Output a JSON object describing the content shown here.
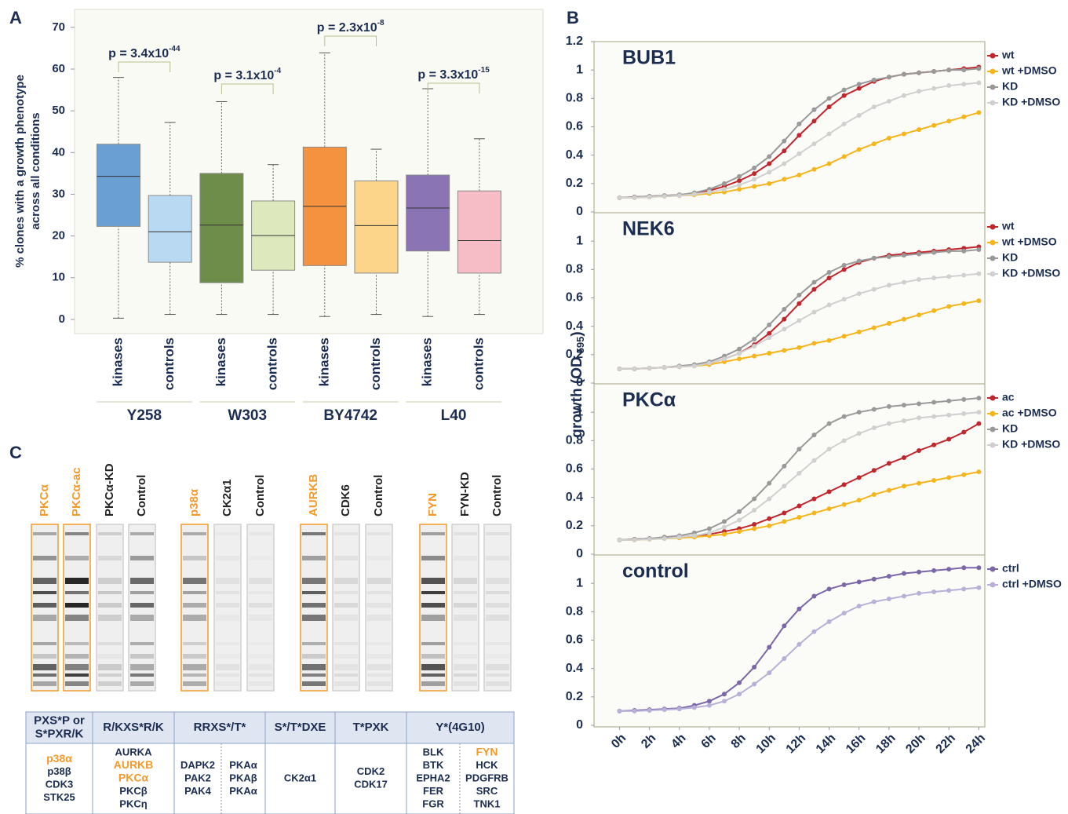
{
  "panel_labels": [
    "A",
    "B",
    "C"
  ],
  "chart_data": [
    {
      "type": "box",
      "y_label": [
        "% clones with a growth phenotype",
        "across all conditions"
      ],
      "categories": [
        "kinases",
        "controls",
        "kinases",
        "controls",
        "kinases",
        "controls",
        "kinases",
        "controls"
      ],
      "groups": [
        {
          "name": "Y258",
          "p_value": "p = 3.4x10",
          "p_exponent": "-44"
        },
        {
          "name": "W303",
          "p_value": "p = 3.1x10",
          "p_exponent": "-4"
        },
        {
          "name": "BY4742",
          "p_value": "p = 2.3x10",
          "p_exponent": "-8"
        },
        {
          "name": "L40",
          "p_value": "p = 3.3x10",
          "p_exponent": "-15"
        }
      ],
      "boxes": [
        {
          "min": 0.3,
          "q1": 22.3,
          "median": 34.3,
          "q3": 42,
          "max": 58,
          "color": "#6a9fd4"
        },
        {
          "min": 1.2,
          "q1": 13.7,
          "median": 21,
          "q3": 29.7,
          "max": 47.2,
          "color": "#b9d8f2"
        },
        {
          "min": 1.2,
          "q1": 8.8,
          "median": 22.6,
          "q3": 35,
          "max": 52.2,
          "color": "#6e8c4a"
        },
        {
          "min": 1.2,
          "q1": 11.8,
          "median": 20.1,
          "q3": 28.4,
          "max": 37.1,
          "color": "#dde9bd"
        },
        {
          "min": 0.7,
          "q1": 12.9,
          "median": 27.1,
          "q3": 41.3,
          "max": 63.9,
          "color": "#f5923f"
        },
        {
          "min": 1.2,
          "q1": 11.1,
          "median": 22.5,
          "q3": 33.2,
          "max": 40.8,
          "color": "#fcd58a"
        },
        {
          "min": 0.7,
          "q1": 16.4,
          "median": 26.7,
          "q3": 34.6,
          "max": 55.3,
          "color": "#8b74b4"
        },
        {
          "min": 1.2,
          "q1": 11.1,
          "median": 18.9,
          "q3": 30.8,
          "max": 43.3,
          "color": "#f7bdc6"
        }
      ],
      "ylim": [
        -3.4,
        74.3
      ],
      "yticks": [
        0,
        10,
        20,
        30,
        40,
        50,
        60,
        70
      ]
    },
    {
      "type": "line",
      "title": "BUB1",
      "x": [
        0,
        1,
        2,
        3,
        4,
        5,
        6,
        7,
        8,
        9,
        10,
        11,
        12,
        13,
        14,
        15,
        16,
        17,
        18,
        19,
        20,
        21,
        22,
        23,
        24
      ],
      "xlim": [
        -1.7,
        24.4
      ],
      "ylim": [
        0,
        1.2
      ],
      "yticks": [
        0,
        0.2,
        0.4,
        0.6,
        0.8,
        1,
        1.2
      ],
      "series": [
        {
          "name": "wt",
          "color": "#c0272d",
          "values": [
            0.1,
            0.105,
            0.11,
            0.115,
            0.12,
            0.13,
            0.15,
            0.18,
            0.22,
            0.27,
            0.34,
            0.43,
            0.54,
            0.64,
            0.74,
            0.82,
            0.87,
            0.92,
            0.95,
            0.97,
            0.98,
            0.99,
            1.0,
            1.01,
            1.02
          ]
        },
        {
          "name": "wt +DMSO",
          "color": "#f5b51b",
          "values": [
            0.1,
            0.1,
            0.105,
            0.11,
            0.115,
            0.12,
            0.13,
            0.14,
            0.16,
            0.18,
            0.2,
            0.23,
            0.26,
            0.3,
            0.34,
            0.39,
            0.44,
            0.48,
            0.52,
            0.55,
            0.58,
            0.61,
            0.64,
            0.67,
            0.7
          ]
        },
        {
          "name": "KD",
          "color": "#999999",
          "values": [
            0.1,
            0.105,
            0.11,
            0.115,
            0.12,
            0.135,
            0.16,
            0.2,
            0.25,
            0.31,
            0.39,
            0.5,
            0.62,
            0.72,
            0.8,
            0.86,
            0.9,
            0.93,
            0.95,
            0.97,
            0.98,
            0.99,
            1.0,
            1.0,
            1.01
          ]
        },
        {
          "name": "KD +DMSO",
          "color": "#d0d0d0",
          "values": [
            0.1,
            0.1,
            0.105,
            0.11,
            0.115,
            0.125,
            0.14,
            0.16,
            0.19,
            0.23,
            0.28,
            0.34,
            0.41,
            0.48,
            0.55,
            0.62,
            0.68,
            0.74,
            0.78,
            0.82,
            0.85,
            0.87,
            0.89,
            0.9,
            0.91
          ]
        }
      ]
    },
    {
      "type": "line",
      "title": "NEK6",
      "x": [
        0,
        1,
        2,
        3,
        4,
        5,
        6,
        7,
        8,
        9,
        10,
        11,
        12,
        13,
        14,
        15,
        16,
        17,
        18,
        19,
        20,
        21,
        22,
        23,
        24
      ],
      "xlim": [
        -1.7,
        24.4
      ],
      "ylim": [
        0,
        1.2
      ],
      "yticks": [
        0,
        0.2,
        0.4,
        0.6,
        0.8,
        1
      ],
      "series": [
        {
          "name": "wt",
          "color": "#c0272d",
          "values": [
            0.1,
            0.1,
            0.105,
            0.11,
            0.115,
            0.125,
            0.14,
            0.17,
            0.21,
            0.27,
            0.35,
            0.45,
            0.56,
            0.66,
            0.74,
            0.8,
            0.85,
            0.88,
            0.9,
            0.91,
            0.92,
            0.93,
            0.94,
            0.95,
            0.96
          ]
        },
        {
          "name": "wt +DMSO",
          "color": "#f5b51b",
          "values": [
            0.1,
            0.1,
            0.105,
            0.11,
            0.115,
            0.12,
            0.13,
            0.15,
            0.17,
            0.19,
            0.21,
            0.23,
            0.25,
            0.28,
            0.3,
            0.33,
            0.36,
            0.39,
            0.42,
            0.45,
            0.48,
            0.51,
            0.54,
            0.56,
            0.58
          ]
        },
        {
          "name": "KD",
          "color": "#999999",
          "values": [
            0.1,
            0.1,
            0.105,
            0.11,
            0.12,
            0.13,
            0.15,
            0.19,
            0.24,
            0.31,
            0.41,
            0.52,
            0.62,
            0.71,
            0.78,
            0.83,
            0.86,
            0.88,
            0.89,
            0.9,
            0.91,
            0.92,
            0.93,
            0.93,
            0.94
          ]
        },
        {
          "name": "KD +DMSO",
          "color": "#d0d0d0",
          "values": [
            0.1,
            0.1,
            0.105,
            0.11,
            0.115,
            0.12,
            0.14,
            0.17,
            0.21,
            0.26,
            0.32,
            0.38,
            0.44,
            0.5,
            0.55,
            0.59,
            0.63,
            0.66,
            0.69,
            0.71,
            0.73,
            0.74,
            0.75,
            0.76,
            0.77
          ]
        }
      ]
    },
    {
      "type": "line",
      "title": "PKCα",
      "x": [
        0,
        1,
        2,
        3,
        4,
        5,
        6,
        7,
        8,
        9,
        10,
        11,
        12,
        13,
        14,
        15,
        16,
        17,
        18,
        19,
        20,
        21,
        22,
        23,
        24
      ],
      "xlim": [
        -1.7,
        24.4
      ],
      "ylim": [
        0,
        1.2
      ],
      "yticks": [
        0,
        0.2,
        0.4,
        0.6,
        0.8,
        1
      ],
      "series": [
        {
          "name": "ac",
          "color": "#c0272d",
          "values": [
            0.1,
            0.105,
            0.11,
            0.115,
            0.12,
            0.13,
            0.14,
            0.16,
            0.18,
            0.21,
            0.25,
            0.29,
            0.34,
            0.39,
            0.44,
            0.49,
            0.54,
            0.59,
            0.64,
            0.68,
            0.73,
            0.77,
            0.81,
            0.86,
            0.92
          ]
        },
        {
          "name": "ac +DMSO",
          "color": "#f5b51b",
          "values": [
            0.1,
            0.1,
            0.105,
            0.11,
            0.115,
            0.12,
            0.13,
            0.14,
            0.16,
            0.18,
            0.2,
            0.23,
            0.26,
            0.29,
            0.32,
            0.35,
            0.38,
            0.42,
            0.45,
            0.48,
            0.5,
            0.52,
            0.54,
            0.56,
            0.58
          ]
        },
        {
          "name": "KD",
          "color": "#999999",
          "values": [
            0.1,
            0.105,
            0.11,
            0.12,
            0.13,
            0.15,
            0.18,
            0.23,
            0.3,
            0.39,
            0.5,
            0.62,
            0.74,
            0.84,
            0.92,
            0.97,
            1.0,
            1.02,
            1.04,
            1.05,
            1.06,
            1.07,
            1.08,
            1.09,
            1.1
          ]
        },
        {
          "name": "KD +DMSO",
          "color": "#d0d0d0",
          "values": [
            0.1,
            0.1,
            0.105,
            0.11,
            0.12,
            0.13,
            0.15,
            0.19,
            0.24,
            0.31,
            0.39,
            0.48,
            0.57,
            0.66,
            0.74,
            0.8,
            0.85,
            0.89,
            0.92,
            0.94,
            0.96,
            0.97,
            0.98,
            0.99,
            1.0
          ]
        }
      ]
    },
    {
      "type": "line",
      "title": "control",
      "x": [
        0,
        1,
        2,
        3,
        4,
        5,
        6,
        7,
        8,
        9,
        10,
        11,
        12,
        13,
        14,
        15,
        16,
        17,
        18,
        19,
        20,
        21,
        22,
        23,
        24
      ],
      "xlim": [
        -1.7,
        24.4
      ],
      "ylim": [
        0,
        1.2
      ],
      "yticks": [
        0,
        0.2,
        0.4,
        0.6,
        0.8,
        1
      ],
      "xticks": [
        {
          "value": 0,
          "label": "0h"
        },
        {
          "value": 2,
          "label": "2h"
        },
        {
          "value": 4,
          "label": "4h"
        },
        {
          "value": 6,
          "label": "6h"
        },
        {
          "value": 8,
          "label": "8h"
        },
        {
          "value": 10,
          "label": "10h"
        },
        {
          "value": 12,
          "label": "12h"
        },
        {
          "value": 14,
          "label": "14h"
        },
        {
          "value": 16,
          "label": "16h"
        },
        {
          "value": 18,
          "label": "18h"
        },
        {
          "value": 20,
          "label": "20h"
        },
        {
          "value": 22,
          "label": "22h"
        },
        {
          "value": 24,
          "label": "24h"
        }
      ],
      "series": [
        {
          "name": "ctrl",
          "color": "#7b67a8",
          "values": [
            0.1,
            0.105,
            0.11,
            0.115,
            0.12,
            0.14,
            0.17,
            0.22,
            0.3,
            0.41,
            0.55,
            0.7,
            0.82,
            0.91,
            0.96,
            0.99,
            1.01,
            1.03,
            1.05,
            1.07,
            1.08,
            1.09,
            1.1,
            1.11,
            1.11
          ]
        },
        {
          "name": "ctrl +DMSO",
          "color": "#b8b0d6",
          "values": [
            0.1,
            0.1,
            0.105,
            0.11,
            0.115,
            0.125,
            0.14,
            0.17,
            0.22,
            0.29,
            0.37,
            0.47,
            0.57,
            0.66,
            0.73,
            0.79,
            0.84,
            0.87,
            0.89,
            0.91,
            0.93,
            0.94,
            0.95,
            0.96,
            0.97
          ]
        }
      ]
    }
  ],
  "growth_axis_label": {
    "main": "growth (OD",
    "subscript": "595",
    "close": ")"
  },
  "blot_lanes": [
    {
      "label": "PKCα",
      "color": "#f39a2b"
    },
    {
      "label": "PKCα-ac",
      "color": "#f39a2b"
    },
    {
      "label": "PKCα-KD",
      "color": "#222222"
    },
    {
      "label": "Control",
      "color": "#222222"
    },
    {
      "label": "p38α",
      "color": "#f39a2b"
    },
    {
      "label": "CK2α1",
      "color": "#222222"
    },
    {
      "label": "Control",
      "color": "#222222"
    },
    {
      "label": "AURKB",
      "color": "#f39a2b"
    },
    {
      "label": "CDK6",
      "color": "#222222"
    },
    {
      "label": "Control",
      "color": "#222222"
    },
    {
      "label": "FYN",
      "color": "#f39a2b"
    },
    {
      "label": "FYN-KD",
      "color": "#222222"
    },
    {
      "label": "Control",
      "color": "#222222"
    }
  ],
  "table": {
    "highlight_color": "#f39a2b",
    "headers": [
      [
        "PXS*P or",
        "S*PXR/K"
      ],
      [
        "R/KXS*R/K"
      ],
      [
        "RRXS*/T*"
      ],
      [
        "S*/T*DXE"
      ],
      [
        "T*PXK"
      ],
      [
        "Y*(4G10)"
      ]
    ],
    "cells": [
      [
        [
          {
            "text": "p38α",
            "highlight": true
          },
          "p38β",
          "CDK3",
          "STK25"
        ]
      ],
      [
        [
          "AURKA",
          {
            "text": "AURKB",
            "highlight": true
          },
          {
            "text": "PKCα",
            "highlight": true
          },
          "PKCβ",
          "PKCη"
        ]
      ],
      [
        [
          "DAPK2",
          "PAK2",
          "PAK4"
        ],
        [
          "PKAα",
          "PKAβ",
          "PKAα"
        ]
      ],
      [
        [
          "CK2α1"
        ]
      ],
      [
        [
          "CDK2",
          "CDK17"
        ]
      ],
      [
        [
          "BLK",
          "BTK",
          "EPHA2",
          "FER",
          "FGR"
        ],
        [
          {
            "text": "FYN",
            "highlight": true
          },
          "HCK",
          "PDGFRB",
          "SRC",
          "TNK1"
        ]
      ]
    ]
  }
}
